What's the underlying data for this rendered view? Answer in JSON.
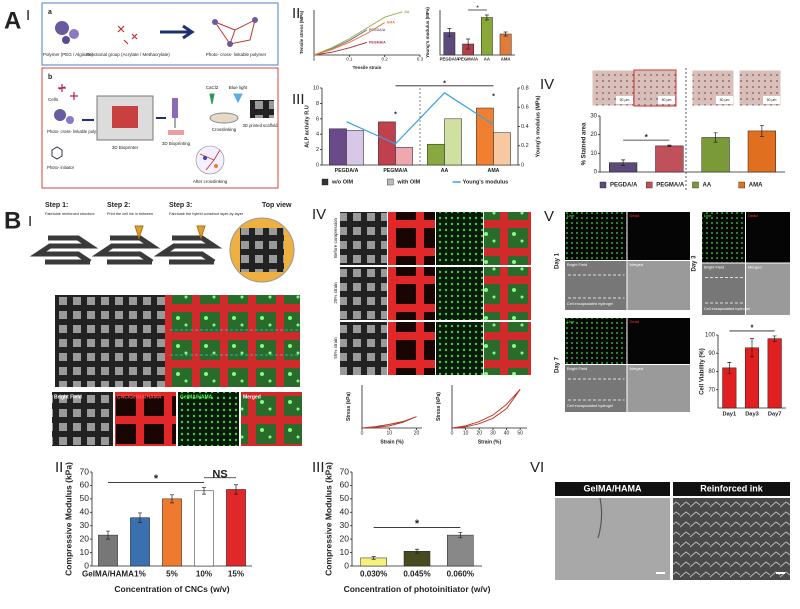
{
  "figure": {
    "panel_A": "A",
    "panel_B": "B",
    "A_I": "I",
    "A_II": "II",
    "A_III": "III",
    "A_IV": "IV",
    "B_I": "I",
    "B_II": "II",
    "B_III": "III",
    "B_IV": "IV",
    "B_V": "V",
    "B_VI": "VI",
    "schematic_a": {
      "label": "a",
      "polymer": "Polymer (PEG / Alginate)",
      "functional_group": "Functional group (Acrylate / Methacrylate)",
      "product": "Photo- cross- linkable polymer"
    },
    "schematic_b": {
      "label": "b",
      "cells": "Cells",
      "polymer": "Photo- cross- linkable polymer",
      "initiator": "Photo- initiator",
      "bioprinter": "3D Bioprinter",
      "bioprinting": "3D Bioprinting",
      "cacl2": "CaCl2",
      "blue_light": "Blue light",
      "crosslinking": "Crosslinking",
      "scaffold": "3D printed scaffold",
      "after": "After crosslinking"
    },
    "stain_scale": "50 μm",
    "steps": [
      {
        "title": "Step 1:",
        "text": "Fabricate reinforced structure"
      },
      {
        "title": "Step 2:",
        "text": "Print the cell ink in between"
      },
      {
        "title": "Step 3:",
        "text": "Fabricate the hybrid construct layer-by-layer"
      }
    ],
    "top_view": "Top view",
    "channels": [
      "Bright Field",
      "CNC/GelMA/HAMA",
      "GelMA/HAMA",
      "Merged"
    ],
    "compression_rows": [
      "Before compression",
      "20% strain",
      "50% strain"
    ],
    "day_labels": [
      "Day 1",
      "Day 3",
      "Day 7"
    ],
    "live": "Live",
    "dead": "Dead",
    "bright": "Bright Field",
    "merged": "Merged",
    "hydrogel": "Cell encapsulated hydrogel",
    "sem_labels": [
      "GelMA/HAMA",
      "Reinforced ink"
    ]
  },
  "chart_data": [
    {
      "type": "line",
      "xlabel": "Tensile strain",
      "ylabel": "Tensile stress (MPa)",
      "x": [
        0,
        0.05,
        0.1,
        0.15,
        0.2,
        0.25
      ],
      "xlim": [
        0,
        0.3
      ],
      "xticks": [
        0,
        0.1,
        0.2,
        0.3
      ],
      "ylim": [
        0,
        5
      ],
      "series": [
        {
          "name": "PEGDA/A",
          "color": "#7a6a9a",
          "values": [
            0,
            0.7,
            1.6,
            2.8,
            null,
            null
          ]
        },
        {
          "name": "PEGMA/A",
          "color": "#b03040",
          "values": [
            0,
            0.3,
            0.8,
            1.4,
            null,
            null
          ]
        },
        {
          "name": "AA",
          "color": "#9ab040",
          "values": [
            0,
            0.8,
            1.8,
            3,
            4.2,
            4.8
          ]
        },
        {
          "name": "AMA",
          "color": "#e08040",
          "values": [
            0,
            0.6,
            1.4,
            2.4,
            3.6,
            null
          ]
        }
      ]
    },
    {
      "type": "bar",
      "ylabel": "Young's modulus (MPa)",
      "categories": [
        "PEGDA/A",
        "PEGMA/A",
        "AA",
        "AMA"
      ],
      "values": [
        0.45,
        0.22,
        0.75,
        0.42
      ],
      "errors": [
        0.08,
        0.1,
        0.05,
        0.04
      ],
      "colors": [
        "#5b4a7a",
        "#b5404a",
        "#8aa83a",
        "#e07b39"
      ],
      "ylim": [
        0,
        0.9
      ],
      "annotations": [
        "*"
      ]
    },
    {
      "type": "bar",
      "ylabel": "ALP activity R.U",
      "y2label": "Young's modulus (MPa)",
      "categories": [
        "PEGDA/A",
        "PEGMA/A",
        "AA",
        "AMA"
      ],
      "ylim": [
        0,
        10
      ],
      "yticks": [
        0,
        2,
        4,
        6,
        8,
        10
      ],
      "y2lim": [
        0,
        0.8
      ],
      "y2ticks": [
        0,
        0.2,
        0.4,
        0.6,
        0.8
      ],
      "legend": "bottom",
      "series": [
        {
          "name": "w/o OIM",
          "color": "#333333",
          "colors": [
            "#6a4a8a",
            "#c04050",
            "#8aa840",
            "#f08030"
          ],
          "values": [
            4.7,
            5.6,
            2.7,
            7.4
          ]
        },
        {
          "name": "with OIM",
          "color": "#bbbbbb",
          "colors": [
            "#d8c8e8",
            "#f0a8b0",
            "#d0e0a0",
            "#f8c8a0"
          ],
          "values": [
            4.5,
            2.3,
            6.0,
            4.2
          ]
        },
        {
          "name": "Young's modulus",
          "color": "#3aa0e0",
          "axis": "y2",
          "values": [
            0.45,
            0.22,
            0.75,
            0.42
          ]
        }
      ],
      "annotations": [
        "*",
        "*",
        "*"
      ]
    },
    {
      "type": "bar",
      "ylabel": "% Stained area",
      "categories": [
        "PEGDA/A",
        "PEGMA/A",
        "AA",
        "AMA"
      ],
      "values": [
        5,
        14,
        18.5,
        22
      ],
      "errors": [
        1.5,
        0.4,
        2.5,
        3
      ],
      "colors": [
        "#5b4a7a",
        "#c0505a",
        "#7a9a3a",
        "#e07020"
      ],
      "ylim": [
        0,
        30
      ],
      "yticks": [
        0,
        10,
        20,
        30
      ],
      "legend": "bottom",
      "annotations": [
        "*"
      ]
    },
    {
      "type": "line",
      "xlabel": "Strain (%)",
      "ylabel": "Stress (kPa)",
      "x": [
        0,
        5,
        10,
        15,
        20,
        15,
        10,
        5,
        0
      ],
      "xlim": [
        0,
        22
      ],
      "xticks": [
        0,
        10,
        20
      ],
      "ylim": [
        0,
        3
      ],
      "series": [
        {
          "name": "20% strain",
          "color": "#c0392b",
          "values": [
            0,
            0.1,
            0.25,
            0.45,
            0.8,
            0.4,
            0.15,
            0.05,
            0
          ]
        }
      ]
    },
    {
      "type": "line",
      "xlabel": "Strain (%)",
      "ylabel": "Stress (kPa)",
      "x": [
        0,
        10,
        20,
        30,
        40,
        50,
        40,
        30,
        20,
        10,
        0
      ],
      "xlim": [
        0,
        55
      ],
      "xticks": [
        0,
        10,
        20,
        30,
        40,
        50
      ],
      "ylim": [
        0,
        4
      ],
      "series": [
        {
          "name": "50% strain",
          "color": "#c0392b",
          "values": [
            0,
            0.2,
            0.6,
            1.2,
            2.2,
            3.6,
            1.8,
            0.9,
            0.4,
            0.1,
            0
          ]
        }
      ]
    },
    {
      "type": "bar",
      "ylabel": "Cell Viability (%)",
      "categories": [
        "Day1",
        "Day3",
        "Day7"
      ],
      "values": [
        82,
        93,
        98
      ],
      "errors": [
        3,
        5,
        1.5
      ],
      "color": "#e02020",
      "ylim": [
        60,
        100
      ],
      "yticks": [
        70,
        80,
        90,
        100
      ],
      "annotations": [
        "*"
      ]
    },
    {
      "type": "bar",
      "ylabel": "Compressive Modulus (kPa)",
      "xlabel": "Concentration of CNCs (w/v)",
      "categories": [
        "GelMA/HAMA",
        "1%",
        "5%",
        "10%",
        "15%"
      ],
      "values": [
        23,
        36,
        50,
        56,
        57
      ],
      "errors": [
        3,
        3.5,
        3,
        2.5,
        3.5
      ],
      "colors": [
        "#777777",
        "#3a6fb0",
        "#ee7a30",
        "#ffffff",
        "#e0282a"
      ],
      "ylim": [
        0,
        70
      ],
      "yticks": [
        0,
        10,
        20,
        30,
        40,
        50,
        60,
        70
      ],
      "annotations": [
        "*",
        "NS"
      ]
    },
    {
      "type": "bar",
      "ylabel": "Compressive Modulus (kPa)",
      "xlabel": "Concentration of photoinitiator (w/v)",
      "categories": [
        "0.030%",
        "0.045%",
        "0.060%"
      ],
      "values": [
        6,
        11,
        23
      ],
      "errors": [
        1,
        1.5,
        2
      ],
      "colors": [
        "#f5f07a",
        "#4a4a20",
        "#888888"
      ],
      "ylim": [
        0,
        70
      ],
      "yticks": [
        0,
        10,
        20,
        30,
        40,
        50,
        60,
        70
      ],
      "annotations": [
        "*"
      ]
    }
  ]
}
